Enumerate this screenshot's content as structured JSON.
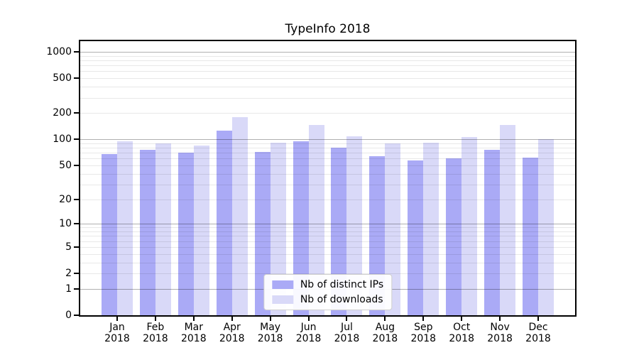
{
  "colors": {
    "distinct_ips": "#aaaaf6",
    "downloads": "#d9d9f8",
    "grid_major": "#b0b0b0",
    "grid_minor": "#e8e8e8",
    "spine": "#000000",
    "legend_border": "#cfcfcf",
    "legend_bg": "#ffffff"
  },
  "chart_data": {
    "type": "bar",
    "title": "TypeInfo 2018",
    "categories": [
      "Jan 2018",
      "Feb 2018",
      "Mar 2018",
      "Apr 2018",
      "May 2018",
      "Jun 2018",
      "Jul 2018",
      "Aug 2018",
      "Sep 2018",
      "Oct 2018",
      "Nov 2018",
      "Dec 2018"
    ],
    "series": [
      {
        "name": "Nb of distinct IPs",
        "values": [
          68,
          76,
          70,
          125,
          72,
          95,
          80,
          64,
          57,
          60,
          75,
          61
        ]
      },
      {
        "name": "Nb of downloads",
        "values": [
          95,
          90,
          84,
          181,
          91,
          146,
          109,
          89,
          91,
          107,
          147,
          100
        ]
      }
    ],
    "xlabel": "",
    "ylabel": "",
    "yscale": "log10(value+1)",
    "yticks": [
      0,
      1,
      2,
      5,
      10,
      20,
      50,
      100,
      200,
      500,
      1000
    ],
    "ylim": [
      0,
      1320
    ],
    "grid": "on",
    "legend_position": "lower center"
  }
}
